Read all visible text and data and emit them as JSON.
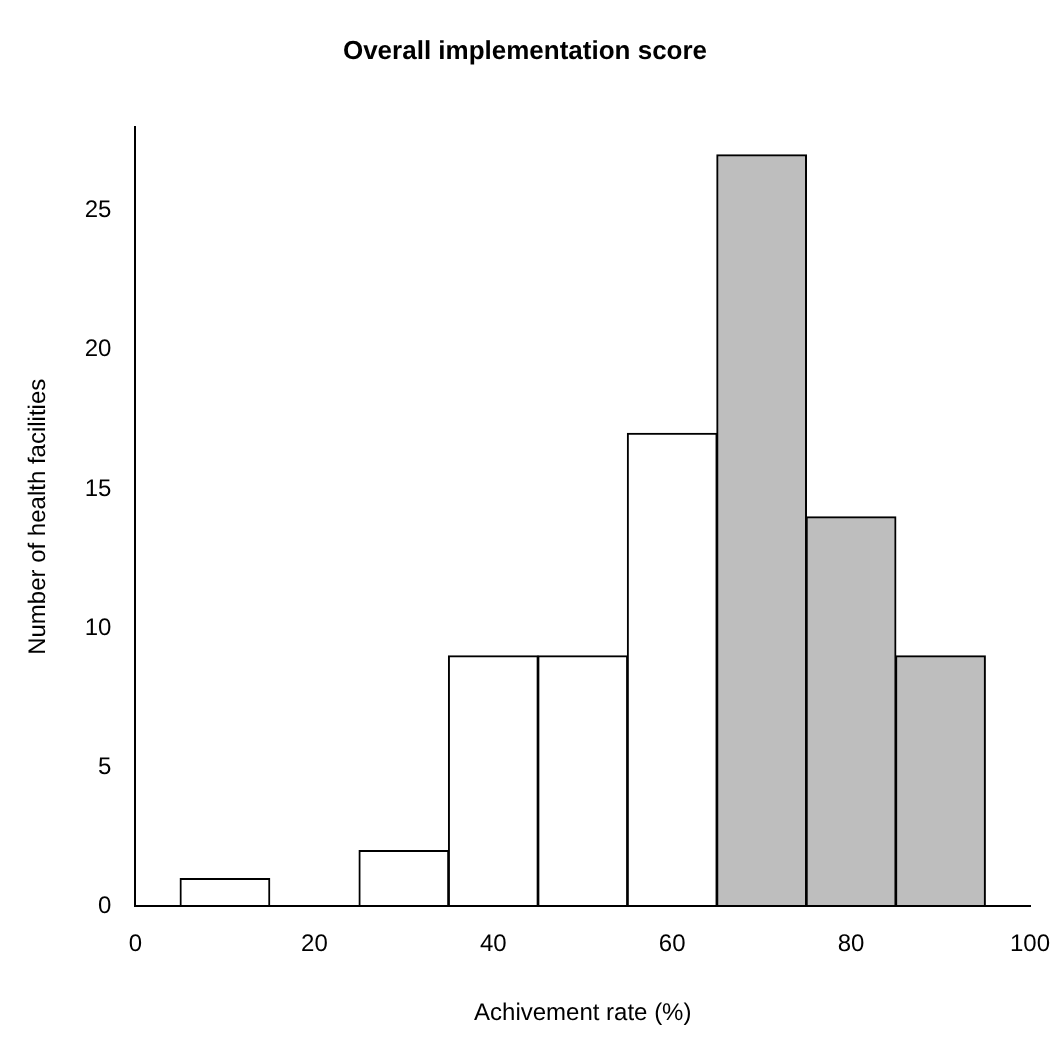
{
  "chart_data": {
    "type": "histogram",
    "title": "Overall implementation score",
    "xlabel": "Achivement rate (%)",
    "ylabel": "Number of health facilities",
    "bins": [
      5,
      15,
      25,
      35,
      45,
      55,
      65,
      75,
      85,
      95
    ],
    "values": [
      1,
      0,
      2,
      9,
      9,
      17,
      27,
      14,
      9
    ],
    "colors": [
      "#ffffff",
      "#ffffff",
      "#ffffff",
      "#ffffff",
      "#ffffff",
      "#ffffff",
      "#bebebe",
      "#bebebe",
      "#bebebe"
    ],
    "xlim": [
      0,
      100
    ],
    "xticks": [
      0,
      20,
      40,
      60,
      80,
      100
    ],
    "ylim": [
      0,
      28
    ],
    "yticks": [
      0,
      5,
      10,
      15,
      20,
      25
    ],
    "grid": false,
    "legend": false
  }
}
